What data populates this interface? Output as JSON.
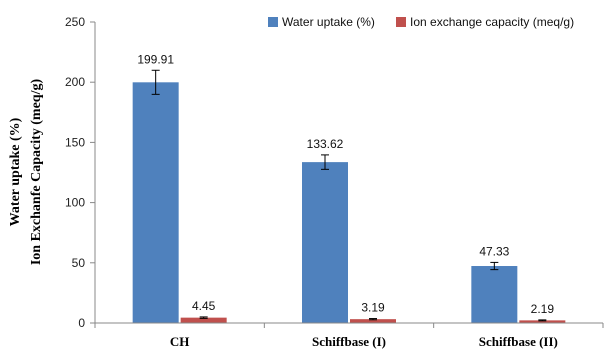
{
  "chart_data": {
    "type": "bar",
    "title": "",
    "xlabel": "",
    "ylabel": [
      "Water uptake (%)",
      "Ion Exchanfe Capacity (meq/g)"
    ],
    "categories": [
      "CH",
      "Schiffbase (I)",
      "Schiffbase (II)"
    ],
    "ylim": [
      0,
      250
    ],
    "yticks": [
      0,
      50,
      100,
      150,
      200,
      250
    ],
    "grid": false,
    "legend_position": "top-right",
    "series": [
      {
        "name": "Water uptake (%)",
        "color": "#4f81bd",
        "values": [
          199.91,
          133.62,
          47.33
        ],
        "labels": [
          "199.91",
          "133.62",
          "47.33"
        ],
        "errors": [
          10,
          6,
          3
        ]
      },
      {
        "name": "Ion exchange capacity (meq/g)",
        "color": "#c0504d",
        "values": [
          4.45,
          3.19,
          2.19
        ],
        "labels": [
          "4.45",
          "3.19",
          "2.19"
        ],
        "errors": [
          0.6,
          0.5,
          0.4
        ]
      }
    ]
  }
}
